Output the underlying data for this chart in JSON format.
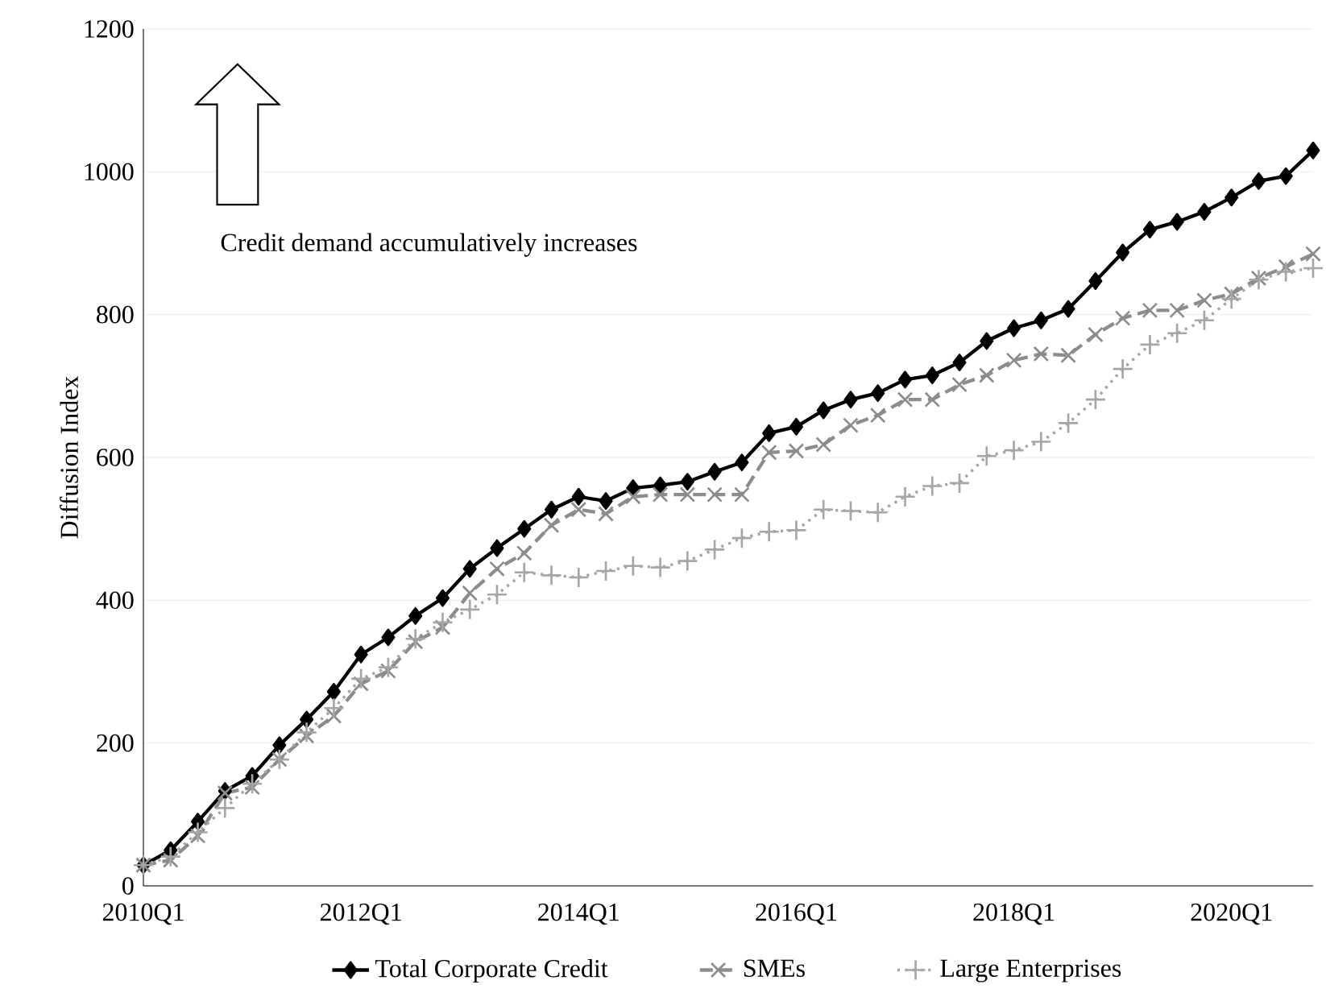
{
  "chart_data": {
    "type": "line",
    "ylabel": "Diffusion Index",
    "categories": [
      "2010Q1",
      null,
      null,
      null,
      null,
      null,
      null,
      null,
      "2012Q1",
      null,
      null,
      null,
      null,
      null,
      null,
      null,
      "2014Q1",
      null,
      null,
      null,
      null,
      null,
      null,
      null,
      "2016Q1",
      null,
      null,
      null,
      null,
      null,
      null,
      null,
      "2018Q1",
      null,
      null,
      null,
      null,
      null,
      null,
      null,
      "2020Q1",
      null,
      null,
      null
    ],
    "series": [
      {
        "name": "Total Corporate Credit",
        "color": "#000000",
        "marker": "diamond",
        "line_style": "solid",
        "values": [
          29,
          50,
          90,
          133,
          154,
          197,
          233,
          272,
          324,
          348,
          378,
          403,
          444,
          473,
          500,
          527,
          545,
          539,
          557,
          561,
          566,
          580,
          593,
          634,
          643,
          666,
          681,
          690,
          709,
          715,
          733,
          763,
          781,
          792,
          808,
          847,
          887,
          919,
          930,
          944,
          964,
          987,
          994,
          1030
        ]
      },
      {
        "name": "SMEs",
        "color": "#8c8c8c",
        "marker": "cross",
        "line_style": "dashed",
        "values": [
          29,
          36,
          70,
          130,
          138,
          177,
          210,
          238,
          283,
          301,
          342,
          362,
          410,
          444,
          466,
          505,
          527,
          521,
          545,
          548,
          548,
          548,
          548,
          607,
          609,
          618,
          645,
          659,
          681,
          681,
          702,
          715,
          736,
          745,
          743,
          772,
          795,
          806,
          806,
          820,
          829,
          851,
          867,
          885
        ]
      },
      {
        "name": "Large Enterprises",
        "color": "#a6a6a6",
        "marker": "plus",
        "line_style": "dotted",
        "values": [
          29,
          41,
          75,
          109,
          143,
          177,
          215,
          249,
          290,
          306,
          346,
          369,
          387,
          408,
          439,
          435,
          432,
          441,
          448,
          446,
          455,
          471,
          487,
          496,
          498,
          527,
          525,
          523,
          545,
          560,
          564,
          602,
          610,
          622,
          648,
          681,
          724,
          758,
          774,
          792,
          822,
          849,
          860,
          865
        ]
      }
    ],
    "ylim": [
      0,
      1200
    ],
    "yticks": [
      0,
      200,
      400,
      600,
      800,
      1000,
      1200
    ],
    "grid": "y",
    "legend": "bottom",
    "annotations": [
      "Credit demand accumulatively increases"
    ]
  }
}
